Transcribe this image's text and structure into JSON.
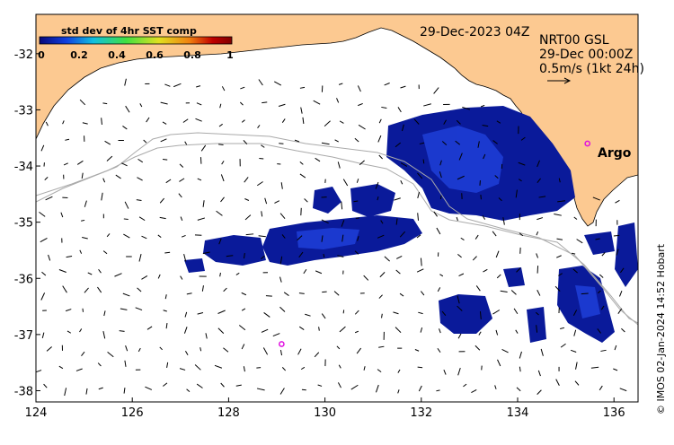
{
  "map": {
    "date_label": "29-Dec-2023 04Z",
    "product_label": "NRT00 GSL",
    "product_time": "29-Dec 00:00Z",
    "scale_label": "0.5m/s (1kt 24h)",
    "credit": "© IMOS 02-Jan-2024 14:52 Hobart",
    "argo_label": "Argo",
    "colors": {
      "land": "#fcc991",
      "ocean": "#ffffff",
      "sst_dark": "#0a1a9a",
      "sst_mid": "#1f3fd8",
      "contour": "#aaaaaa",
      "argo": "#e010e0"
    },
    "x_axis": {
      "min": 124,
      "max": 136.5,
      "ticks": [
        "124",
        "126",
        "128",
        "130",
        "132",
        "134",
        "136"
      ]
    },
    "y_axis": {
      "min": -38.2,
      "max": -31.3,
      "ticks": [
        "-32",
        "-33",
        "-34",
        "-35",
        "-36",
        "-37",
        "-38"
      ]
    },
    "colorbar": {
      "title": "std dev of 4hr SST comp",
      "ticks": [
        "0",
        "0.2",
        "0.4",
        "0.6",
        "0.8",
        "1"
      ],
      "stops": [
        "#08087a",
        "#1040e0",
        "#10c0e0",
        "#40e040",
        "#e0e020",
        "#f08010",
        "#c00000",
        "#800000"
      ]
    },
    "argo_floats": [
      {
        "name": "argo-east",
        "lon": 135.45,
        "lat": -33.6,
        "labelled": true
      },
      {
        "name": "argo-south",
        "lon": 129.1,
        "lat": -37.17,
        "labelled": false
      }
    ]
  }
}
